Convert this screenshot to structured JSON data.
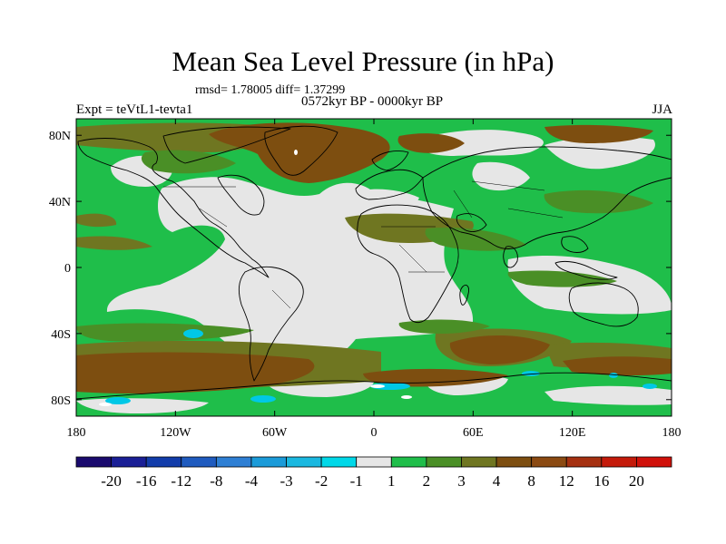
{
  "title": "Mean Sea Level Pressure (in hPa)",
  "stats": "rmsd= 1.78005 diff= 1.37299",
  "period": "0572kyr BP - 0000kyr BP",
  "experiment": "Expt = teVtL1-tevta1",
  "season": "JJA",
  "map": {
    "lon_range": [
      -180,
      180
    ],
    "lat_range": [
      -90,
      90
    ],
    "lat_ticks": [
      {
        "value": 80,
        "label": "80N"
      },
      {
        "value": 40,
        "label": "40N"
      },
      {
        "value": 0,
        "label": "0"
      },
      {
        "value": -40,
        "label": "40S"
      },
      {
        "value": -80,
        "label": "80S"
      }
    ],
    "lon_ticks": [
      {
        "value": -180,
        "label": "180"
      },
      {
        "value": -120,
        "label": "120W"
      },
      {
        "value": -60,
        "label": "60W"
      },
      {
        "value": 0,
        "label": "0"
      },
      {
        "value": 60,
        "label": "60E"
      },
      {
        "value": 120,
        "label": "120E"
      },
      {
        "value": 180,
        "label": "180"
      }
    ]
  },
  "colors": {
    "below_-1": "#00c8e6",
    "neutral": "#e6e6e6",
    "band_1_2": "#1fbe4a",
    "band_2_3": "#4a8f26",
    "band_3_4": "#6f7621",
    "band_4_8": "#7d4e10",
    "band_8_12": "#8b4a12",
    "coast": "#000000"
  },
  "colorbar": {
    "colors": [
      "#1a0a6e",
      "#1a1f96",
      "#123caa",
      "#1f5bbf",
      "#2e7fd4",
      "#1b9bd9",
      "#1ab8e0",
      "#00d8e8",
      "#e6e6e6",
      "#1fbe4a",
      "#4a8f26",
      "#6f7621",
      "#7d4e10",
      "#8b4a12",
      "#a53010",
      "#c41a0a",
      "#d0110a"
    ],
    "labels": [
      "-20",
      "-16",
      "-12",
      "-8",
      "-4",
      "-3",
      "-2",
      "-1",
      "1",
      "2",
      "3",
      "4",
      "8",
      "12",
      "16",
      "20"
    ]
  }
}
